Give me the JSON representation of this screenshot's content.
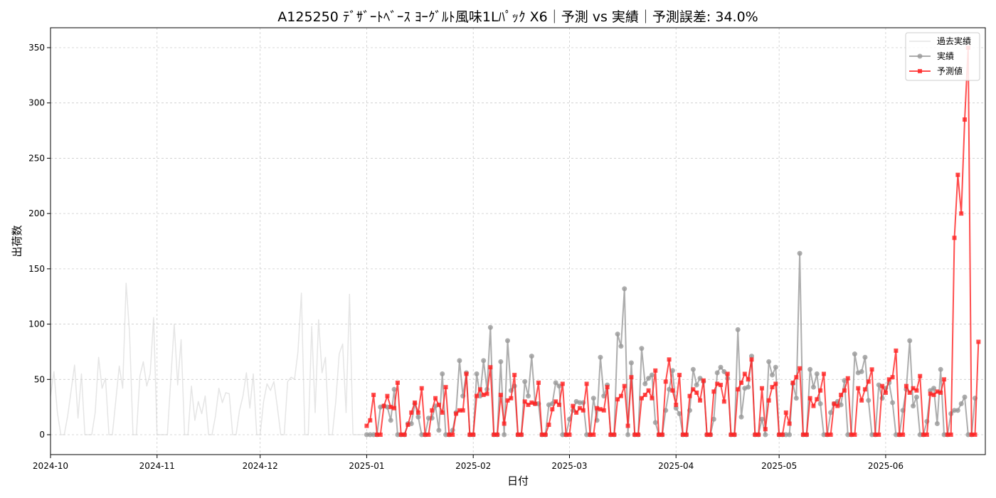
{
  "chart_data": {
    "type": "line",
    "title": "A125250 ﾃﾞｻﾞｰﾄﾍﾞｰｽ ﾖｰｸﾞﾙﾄ風味1Lﾊﾟｯｸ X6｜予測 vs 実績｜予測誤差: 34.0%",
    "xlabel": "日付",
    "ylabel": "出荷数",
    "x_range": [
      "2024-10-01",
      "2025-06-30"
    ],
    "ylim": [
      -18,
      368
    ],
    "x_ticks": [
      "2024-10",
      "2024-11",
      "2024-12",
      "2025-01",
      "2025-02",
      "2025-03",
      "2025-04",
      "2025-05",
      "2025-06"
    ],
    "y_ticks": [
      0,
      50,
      100,
      150,
      200,
      250,
      300,
      350
    ],
    "grid": true,
    "legend": "top-right",
    "series": [
      {
        "name": "過去実績",
        "color": "#d3d3d3",
        "start": "2024-10-01",
        "values": [
          35,
          57,
          20,
          0,
          0,
          17,
          40,
          63,
          15,
          55,
          0,
          0,
          0,
          20,
          70,
          42,
          51,
          0,
          0,
          31,
          62,
          42,
          137,
          92,
          0,
          0,
          53,
          66,
          44,
          55,
          106,
          0,
          0,
          0,
          0,
          50,
          100,
          45,
          86,
          0,
          0,
          44,
          13,
          30,
          19,
          35,
          0,
          0,
          17,
          42,
          29,
          38,
          37,
          0,
          0,
          22,
          35,
          56,
          24,
          55,
          0,
          0,
          30,
          46,
          40,
          48,
          25,
          0,
          0,
          48,
          52,
          50,
          75,
          128,
          0,
          0,
          98,
          20,
          104,
          56,
          70,
          0,
          0,
          30,
          73,
          82,
          20,
          127,
          0,
          0,
          0,
          0
        ]
      },
      {
        "name": "実績",
        "color": "#999999",
        "start": "2025-01-01",
        "values": [
          0,
          0,
          0,
          0,
          25,
          26,
          25,
          13,
          41,
          0,
          0,
          0,
          10,
          10,
          28,
          16,
          0,
          0,
          15,
          15,
          26,
          4,
          55,
          0,
          0,
          4,
          20,
          67,
          35,
          56,
          0,
          0,
          55,
          35,
          67,
          41,
          97,
          0,
          0,
          66,
          0,
          85,
          40,
          44,
          0,
          0,
          48,
          35,
          71,
          28,
          28,
          0,
          0,
          27,
          28,
          47,
          44,
          0,
          0,
          14,
          22,
          30,
          29,
          29,
          0,
          0,
          33,
          13,
          70,
          35,
          45,
          0,
          0,
          91,
          80,
          132,
          0,
          65,
          0,
          0,
          78,
          46,
          51,
          54,
          11,
          0,
          0,
          22,
          41,
          58,
          24,
          19,
          0,
          0,
          22,
          59,
          45,
          51,
          48,
          0,
          0,
          14,
          56,
          61,
          57,
          51,
          0,
          0,
          95,
          16,
          42,
          43,
          71,
          0,
          0,
          14,
          0,
          66,
          54,
          61,
          0,
          0,
          0,
          0,
          46,
          33,
          164,
          0,
          0,
          59,
          43,
          55,
          28,
          0,
          0,
          20,
          28,
          30,
          27,
          49,
          0,
          0,
          73,
          56,
          57,
          70,
          31,
          0,
          0,
          45,
          33,
          42,
          47,
          29,
          0,
          0,
          22,
          41,
          85,
          26,
          34,
          0,
          0,
          12,
          40,
          42,
          10,
          59,
          0,
          0,
          19,
          22,
          22,
          28,
          34,
          0,
          0,
          33
        ]
      },
      {
        "name": "予測値",
        "color": "#ff2020",
        "start": "2025-01-01",
        "values": [
          8,
          13,
          36,
          0,
          0,
          26,
          35,
          25,
          24,
          47,
          0,
          0,
          9,
          20,
          29,
          20,
          42,
          0,
          0,
          22,
          33,
          27,
          20,
          43,
          0,
          0,
          19,
          22,
          22,
          55,
          0,
          0,
          35,
          41,
          36,
          37,
          61,
          0,
          0,
          36,
          10,
          31,
          33,
          54,
          0,
          0,
          30,
          27,
          29,
          28,
          47,
          0,
          0,
          9,
          23,
          30,
          27,
          46,
          0,
          0,
          26,
          20,
          24,
          22,
          46,
          0,
          0,
          24,
          23,
          22,
          43,
          0,
          0,
          32,
          35,
          44,
          8,
          52,
          0,
          0,
          33,
          36,
          40,
          33,
          58,
          0,
          0,
          48,
          68,
          40,
          27,
          54,
          0,
          0,
          35,
          41,
          38,
          31,
          49,
          0,
          0,
          39,
          46,
          45,
          30,
          55,
          0,
          0,
          41,
          47,
          55,
          50,
          68,
          0,
          0,
          42,
          5,
          31,
          43,
          46,
          0,
          0,
          20,
          10,
          47,
          52,
          60,
          0,
          0,
          33,
          26,
          32,
          40,
          55,
          0,
          0,
          28,
          26,
          36,
          40,
          51,
          0,
          0,
          42,
          31,
          41,
          48,
          59,
          0,
          0,
          44,
          38,
          50,
          52,
          76,
          0,
          0,
          44,
          38,
          42,
          40,
          53,
          0,
          0,
          37,
          36,
          39,
          38,
          50,
          0,
          0,
          178,
          235,
          200,
          285,
          350,
          0,
          0,
          84
        ]
      }
    ]
  }
}
